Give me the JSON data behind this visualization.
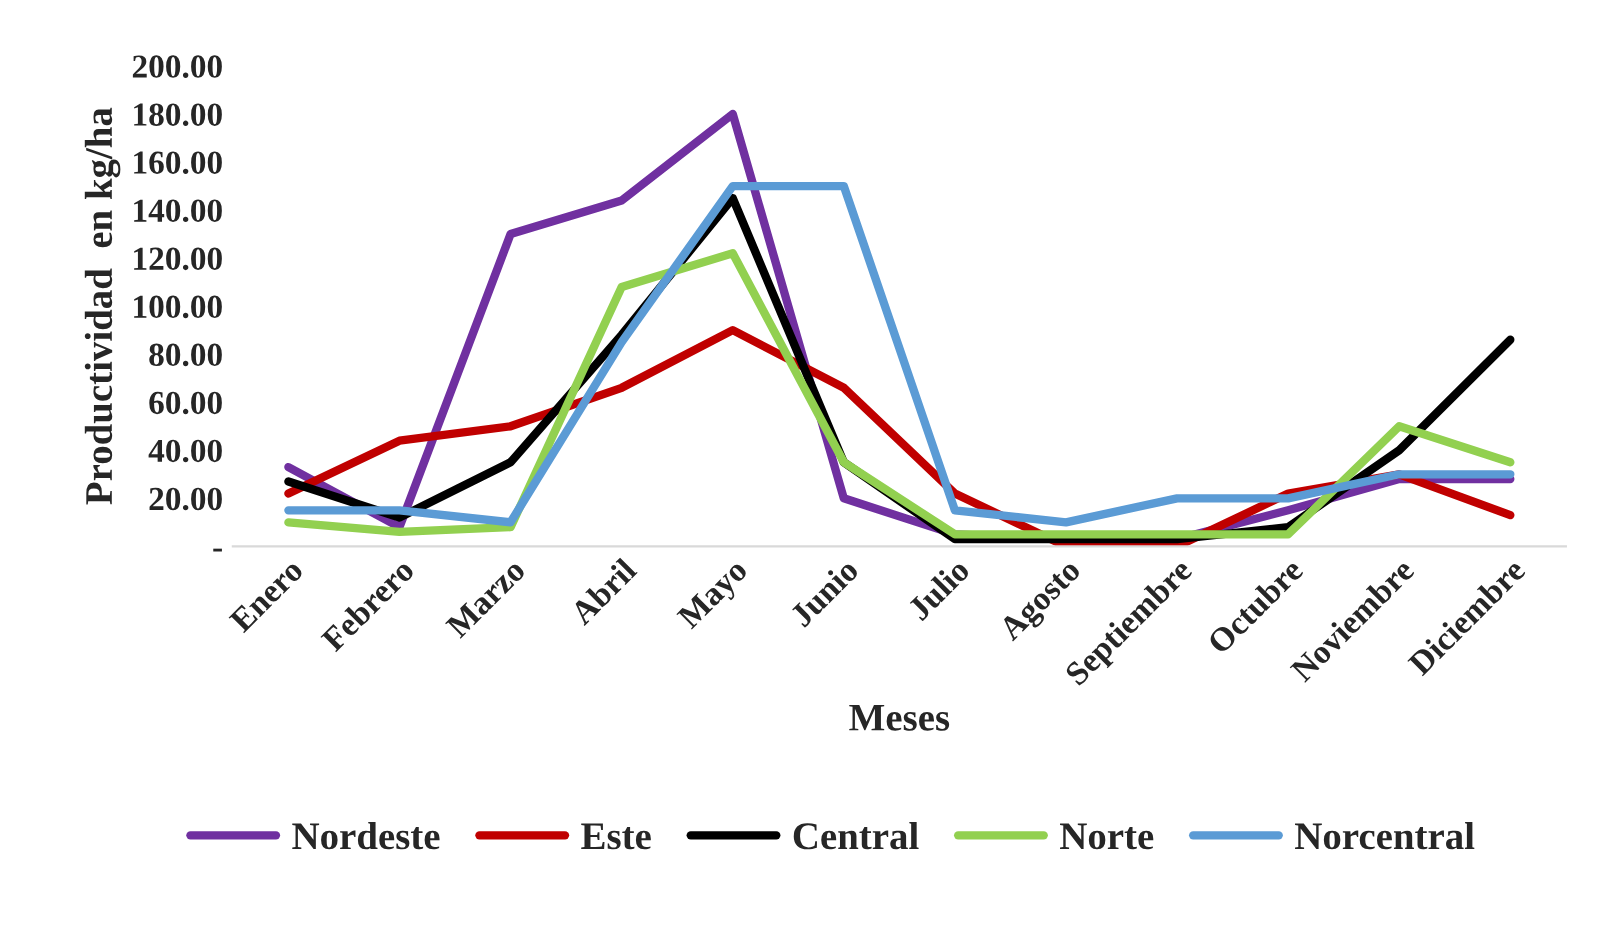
{
  "chart_data": {
    "type": "line",
    "xlabel": "Meses",
    "ylabel": "Productividad  en kg/ha",
    "categories": [
      "Enero",
      "Febrero",
      "Marzo",
      "Abril",
      "Mayo",
      "Junio",
      "Julio",
      "Agosto",
      "Septiembre",
      "Octubre",
      "Noviembre",
      "Diciembre"
    ],
    "series": [
      {
        "name": "Nordeste",
        "color": "#7030a0",
        "values": [
          33,
          8,
          130,
          144,
          180,
          20,
          5,
          3,
          3,
          15,
          28,
          28
        ]
      },
      {
        "name": "Este",
        "color": "#c00000",
        "values": [
          22,
          44,
          50,
          66,
          90,
          66,
          22,
          0,
          0,
          22,
          30,
          13
        ]
      },
      {
        "name": "Central",
        "color": "#000000",
        "values": [
          27,
          12,
          35,
          88,
          145,
          35,
          3,
          3,
          3,
          8,
          40,
          86
        ]
      },
      {
        "name": "Norte",
        "color": "#92d050",
        "values": [
          10,
          6,
          8,
          108,
          122,
          35,
          5,
          5,
          5,
          5,
          50,
          35
        ]
      },
      {
        "name": "Norcentral",
        "color": "#5b9bd5",
        "values": [
          15,
          15,
          10,
          85,
          150,
          150,
          15,
          10,
          20,
          20,
          30,
          30
        ]
      }
    ],
    "ylim": [
      0,
      200
    ],
    "yticks": [
      {
        "value": 0,
        "label": "-"
      },
      {
        "value": 20,
        "label": "20.00"
      },
      {
        "value": 40,
        "label": "40.00"
      },
      {
        "value": 60,
        "label": "60.00"
      },
      {
        "value": 80,
        "label": "80.00"
      },
      {
        "value": 100,
        "label": "100.00"
      },
      {
        "value": 120,
        "label": "120.00"
      },
      {
        "value": 140,
        "label": "140.00"
      },
      {
        "value": 160,
        "label": "160.00"
      },
      {
        "value": 180,
        "label": "180.00"
      },
      {
        "value": 200,
        "label": "200.00"
      }
    ],
    "grid": false,
    "legend": "bottom",
    "marker": "none",
    "line_style": "solid"
  }
}
